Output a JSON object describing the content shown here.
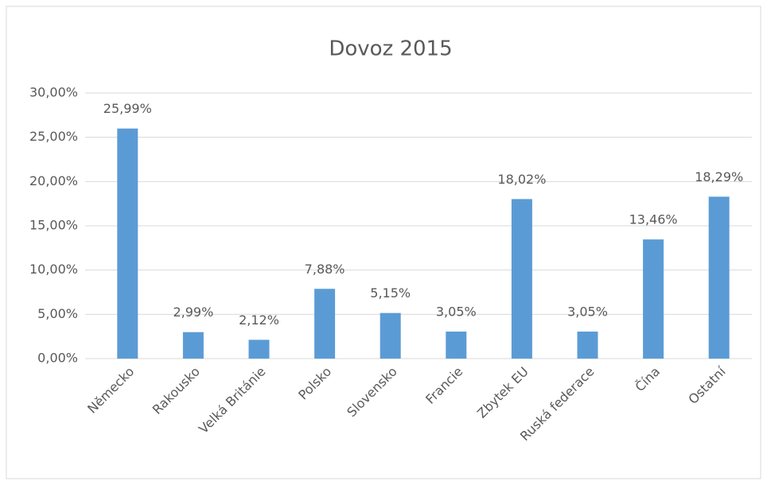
{
  "chart_data": {
    "type": "bar",
    "title": "Dovoz 2015",
    "categories": [
      "Německo",
      "Rakousko",
      "Velká Británie",
      "Polsko",
      "Slovensko",
      "Francie",
      "Zbytek EU",
      "Ruská federace",
      "Čína",
      "Ostatní"
    ],
    "values": [
      25.99,
      2.99,
      2.12,
      7.88,
      5.15,
      3.05,
      18.02,
      3.05,
      13.46,
      18.29
    ],
    "value_labels": [
      "25,99%",
      "2,99%",
      "2,12%",
      "7,88%",
      "5,15%",
      "3,05%",
      "18,02%",
      "3,05%",
      "13,46%",
      "18,29%"
    ],
    "color": "#5b9bd5",
    "ylim": [
      0,
      30
    ],
    "yticks": [
      {
        "value": 0,
        "label": "0,00%"
      },
      {
        "value": 5,
        "label": "5,00%"
      },
      {
        "value": 10,
        "label": "10,00%"
      },
      {
        "value": 15,
        "label": "15,00%"
      },
      {
        "value": 20,
        "label": "20,00%"
      },
      {
        "value": 25,
        "label": "25,00%"
      },
      {
        "value": 30,
        "label": "30,00%"
      }
    ],
    "grid": true
  }
}
